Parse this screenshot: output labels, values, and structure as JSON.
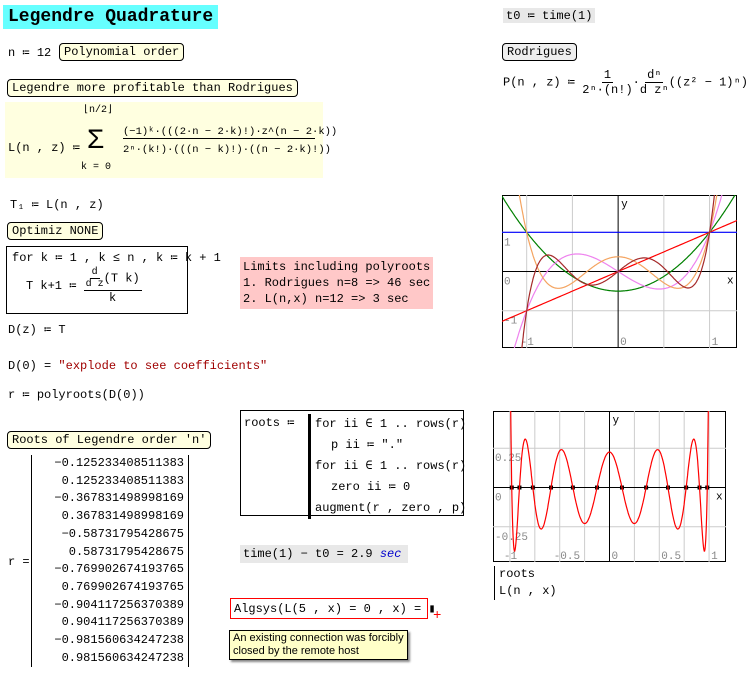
{
  "title": "Legendre Quadrature",
  "n_def": "n ≔ 12",
  "poly_order_label": "Polynomial order",
  "t0_def": "t0 ≔ time(1)",
  "rodrigues_label": "Rodrigues",
  "rodrigues_formula": {
    "lhs": "P(n , z) ≔",
    "num": "1",
    "den": "2ⁿ·(n!)",
    "dnum": "dⁿ",
    "dden": "d zⁿ",
    "body": "((z² − 1)ⁿ)"
  },
  "legendre_label": "Legendre more profitable than Rodrigues",
  "legendre_formula": {
    "lhs": "L(n , z) ≔",
    "upper": "⌊n/2⌋",
    "sigma": "Σ",
    "lower": "k = 0",
    "num": "(−1)ᵏ·(((2·n − 2·k)!)·z^(n − 2·k))",
    "den": "2ⁿ·(k!)·(((n − k)!)·((n − 2·k)!))"
  },
  "t1_def": "T₁ ≔ L(n , z)",
  "optimiz_label": "Optimiz NONE",
  "loop": {
    "line1": "for  k ≔ 1 , k ≤ n , k ≔ k + 1",
    "lhs": "T k+1 ≔",
    "dnum": "d",
    "dden": "d z",
    "arg": "(T k)",
    "den": "k"
  },
  "limits": {
    "line1": "Limits including polyroots",
    "line2": "1. Rodrigues n=8 =>  46 sec",
    "line3": "2. L(n,x)     n=12 => 3 sec"
  },
  "d_def": "D(z) ≔ T",
  "d0_eval": {
    "lhs": "D(0) = ",
    "value": "\"explode to see coefficients\""
  },
  "r_def": "r ≔ polyroots(D(0))",
  "roots_label": "Roots of Legendre order 'n'",
  "r_lhs": "r =",
  "roots": [
    "−0.125233408511383",
    "0.125233408511383",
    "−0.367831498998169",
    "0.367831498998169",
    "−0.58731795428675",
    "0.58731795428675",
    "−0.769902674193765",
    "0.769902674193765",
    "−0.904117256370389",
    "0.904117256370389",
    "−0.981560634247238",
    "0.981560634247238"
  ],
  "roots_prog": {
    "lhs": "roots ≔",
    "l1": "for ii ∈ 1 .. rows(r)",
    "l2": "p ii ≔ \".\"",
    "l3": "for ii ∈ 1 .. rows(r)",
    "l4": "zero ii ≔ 0",
    "l5": "augment(r , zero , p)"
  },
  "time_eval": {
    "expr": "time(1) − t0 = 2.9 ",
    "unit": "sec"
  },
  "algsys": "Algsys(L(5 , x) = 0 , x) = ▮",
  "error_tip": {
    "line1": "An existing connection was forcibly",
    "line2": "closed by the remote host"
  },
  "colors": {
    "title_bg": "#66ffff",
    "label_bg": "#ffffe0",
    "limits_bg": "#ffc8c8",
    "error_border": "#ff0000",
    "string": "#a00000",
    "unit": "#0000cc"
  },
  "chart_data": [
    {
      "type": "line",
      "xlabel": "x",
      "ylabel": "y",
      "xlim": [
        -1.27,
        1.3
      ],
      "ylim": [
        -1.95,
        1.95
      ],
      "grid": true,
      "x_ticks": [
        "-1",
        "0",
        "1"
      ],
      "y_ticks": [
        "1",
        "0",
        "-1"
      ],
      "series": [
        {
          "legendre_order": 0,
          "color": "#0000ff"
        },
        {
          "legendre_order": 1,
          "color": "#ff0000"
        },
        {
          "legendre_order": 2,
          "color": "#008000"
        },
        {
          "legendre_order": 3,
          "color": "#ee82ee"
        },
        {
          "legendre_order": 4,
          "color": "#f4a460"
        },
        {
          "legendre_order": 5,
          "color": "#a52a2a"
        }
      ]
    },
    {
      "type": "line",
      "xlabel": "x",
      "ylabel": "y",
      "xlim": [
        -1.17,
        1.17
      ],
      "ylim": [
        -0.474,
        0.487
      ],
      "grid": true,
      "x_ticks": [
        "-1",
        "-0.5",
        "0",
        "0.5",
        "1"
      ],
      "y_ticks": [
        "0.25",
        "0",
        "-0.25"
      ],
      "legend": [
        "roots",
        "L(n , x)"
      ],
      "series": [
        {
          "name": "roots",
          "type": "scatter",
          "color": "#000000"
        },
        {
          "name": "L(n , x)",
          "legendre_order": 12,
          "color": "#ff0000"
        }
      ]
    }
  ]
}
